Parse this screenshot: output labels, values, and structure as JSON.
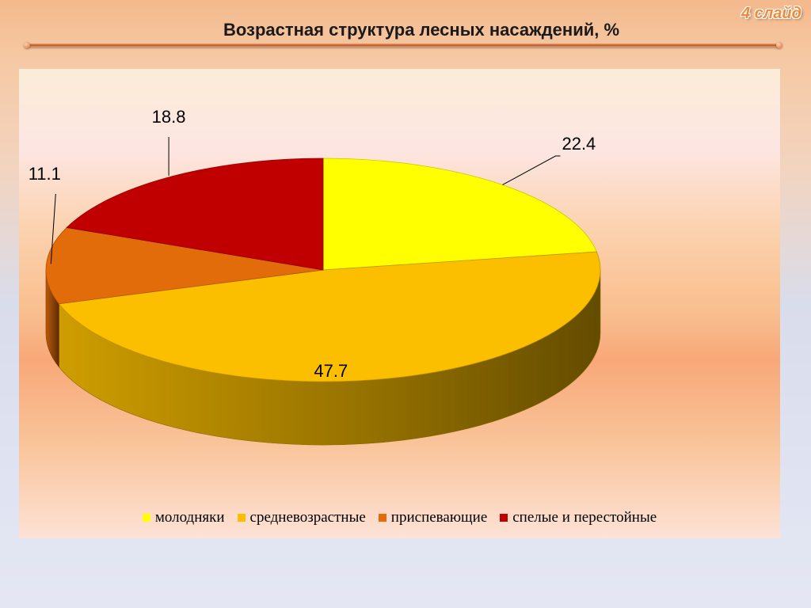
{
  "slide": {
    "number_label": "4 слайд",
    "title": "Возрастная структура лесных насаждений, %"
  },
  "chart_data": {
    "type": "pie",
    "title": "Возрастная структура лесных насаждений, %",
    "categories": [
      "молодняки",
      "средневозрастные",
      "приспевающие",
      "спелые и перестойные"
    ],
    "values": [
      22.4,
      47.7,
      11.1,
      18.8
    ],
    "value_labels": [
      "22.4",
      "47.7",
      "11.1",
      "18.8"
    ],
    "colors": [
      "#ffff00",
      "#fbbf00",
      "#e36c0a",
      "#c00000"
    ],
    "style": "3d",
    "legend_position": "bottom"
  }
}
